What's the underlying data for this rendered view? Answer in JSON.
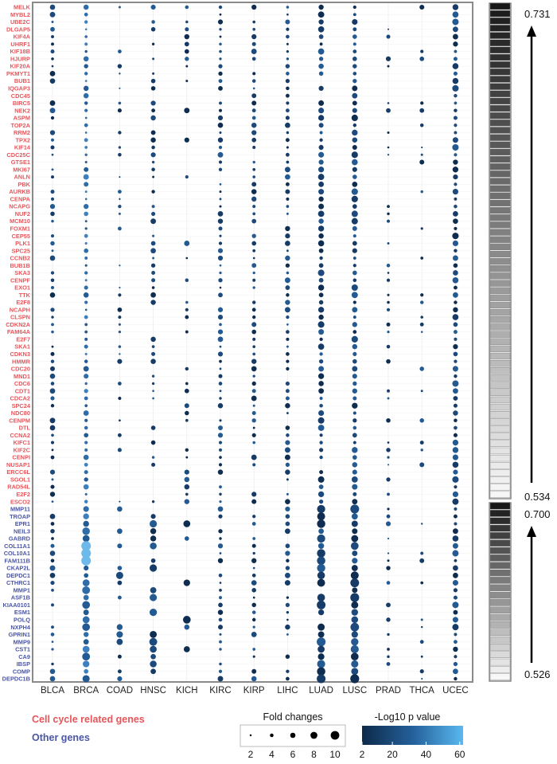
{
  "chart_data": {
    "type": "dot-matrix",
    "categories": [
      "BLCA",
      "BRCA",
      "COAD",
      "HNSC",
      "KICH",
      "KIRC",
      "KIRP",
      "LIHC",
      "LUAD",
      "LUSC",
      "PRAD",
      "THCA",
      "UCEC"
    ],
    "groups": [
      {
        "name": "Cell cycle related genes",
        "color": "#e8555a",
        "genes": [
          "MELK",
          "MYBL2",
          "UBE2C",
          "DLGAP5",
          "KIF4A",
          "UHRF1",
          "KIF18B",
          "HJURP",
          "KIF20A",
          "PKMYT1",
          "BUB1",
          "IQGAP3",
          "CDC45",
          "BIRC5",
          "NEK2",
          "ASPM",
          "TOP2A",
          "RRM2",
          "TPX2",
          "KIF14",
          "CDC25C",
          "GTSE1",
          "MKI67",
          "ANLN",
          "PBK",
          "AURKB",
          "CENPA",
          "NCAPG",
          "NUF2",
          "MCM10",
          "FOXM1",
          "CEP55",
          "PLK1",
          "SPC25",
          "CCNB2",
          "BUB1B",
          "SKA3",
          "CENPF",
          "EXO1",
          "TTK",
          "E2F8",
          "NCAPH",
          "CLSPN",
          "CDKN2A",
          "FAM64A",
          "E2F7",
          "SKA1",
          "CDKN3",
          "HMMR",
          "CDC20",
          "MND1",
          "CDC6",
          "CDT1",
          "CDCA2",
          "SPC24",
          "NDC80",
          "CENPM",
          "DTL",
          "CCNA2",
          "KIFC1",
          "KIF2C",
          "CENPI",
          "NUSAP1",
          "ERCC6L",
          "SGOL1",
          "RAD54L",
          "E2F2",
          "ESCO2"
        ]
      },
      {
        "name": "Other genes",
        "color": "#4a56a6",
        "genes": [
          "MMP11",
          "TROAP",
          "EPR1",
          "NEIL3",
          "GABRD",
          "COL11A1",
          "COL10A1",
          "FAM111B",
          "CKAP2L",
          "DEPDC1",
          "CTHRC1",
          "MMP1",
          "ASF1B",
          "KIAA0101",
          "ESM1",
          "POLQ",
          "NXPH4",
          "GPRIN1",
          "MMP9",
          "CST1",
          "CA9",
          "IBSP",
          "COMP",
          "DEPDC1B"
        ]
      }
    ],
    "size_legend": {
      "title": "Fold changes",
      "ticks": [
        "2",
        "4",
        "6",
        "8",
        "10"
      ],
      "values": [
        2,
        4,
        6,
        8,
        10
      ]
    },
    "color_legend": {
      "title": "-Log10 p value",
      "ticks": [
        "2",
        "20",
        "40",
        "60"
      ],
      "range": [
        2,
        62
      ],
      "low_color": "#0d2a4a",
      "high_color": "#5ab8f0"
    },
    "side_bars": [
      {
        "group": "Cell cycle related genes",
        "max_label": "0.731",
        "min_label": "0.534",
        "max": 0.731,
        "min": 0.534
      },
      {
        "group": "Other genes",
        "max_label": "0.700",
        "min_label": "0.526",
        "max": 0.7,
        "min": 0.526
      }
    ],
    "grid": true,
    "legend_position": "bottom"
  }
}
